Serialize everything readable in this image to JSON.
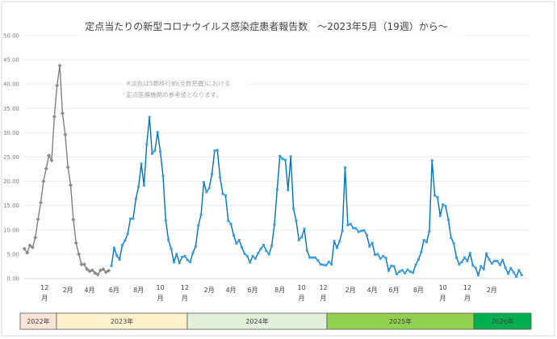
{
  "chart_data": {
    "type": "line",
    "title": "定点当たりの新型コロナウイルス感染症患者報告数　～2023年5月（19週）から～",
    "note_lines": [
      "※淡色は5類移行前(全数把握)における",
      "定点医療機関の参考値となります。"
    ],
    "ylim": [
      0,
      50
    ],
    "y_ticks": [
      "0.00",
      "5.00",
      "10.00",
      "15.00",
      "20.00",
      "25.00",
      "30.00",
      "35.00",
      "40.00",
      "45.00",
      "50.00"
    ],
    "grid": true,
    "x_ticks": [
      "12月",
      "2月",
      "4月",
      "6月",
      "8月",
      "10月",
      "12月",
      "2月",
      "4月",
      "6月",
      "8月",
      "10月",
      "12月",
      "2月",
      "4月",
      "6月",
      "8月",
      "10月",
      "12月",
      "2月"
    ],
    "series": [
      {
        "color": "#808080",
        "values": [
          6.1,
          5.3,
          6.8,
          6.4,
          8.4,
          12.2,
          15.6,
          20.0,
          22.6,
          25.3,
          24.3,
          33.3,
          39.7,
          43.8,
          34.0,
          29.6,
          22.9,
          19.2,
          12.1,
          7.3,
          5.0,
          2.9,
          2.9,
          1.9,
          1.5,
          1.7,
          1.1,
          0.8,
          1.7,
          1.9,
          1.3,
          1.6
        ]
      },
      {
        "color": "#0070c0",
        "values": [
          2.6,
          6.3,
          4.7,
          3.9,
          6.9,
          7.8,
          9.2,
          12.3,
          12.3,
          16.4,
          18.9,
          23.6,
          19.1,
          27.6,
          33.2,
          25.7,
          26.3,
          30.1,
          26.1,
          21.1,
          11.9,
          7.9,
          6.1,
          3.4,
          5.0,
          3.2,
          4.4,
          4.6,
          3.8,
          3.4,
          5.3,
          6.6,
          10.9,
          13.1,
          19.8,
          17.8,
          18.6,
          21.5,
          26.3,
          26.4,
          20.8,
          17.4,
          17.1,
          11.9,
          11.2,
          8.9,
          7.2,
          7.9,
          6.4,
          5.1,
          4.6,
          3.3,
          4.6,
          4.1,
          5.2,
          6.1,
          6.9,
          5.7,
          5.0,
          6.7,
          11.1,
          18.3,
          25.2,
          24.6,
          24.4,
          18.2,
          25.1,
          14.4,
          11.9,
          7.9,
          8.5,
          10.2,
          5.7,
          4.3,
          4.3,
          4.3,
          3.7,
          2.9,
          2.8,
          2.7,
          3.4,
          2.9,
          7.7,
          6.3,
          7.7,
          9.8,
          22.8,
          11.0,
          11.2,
          10.4,
          10.3,
          9.6,
          9.8,
          9.9,
          8.9,
          6.6,
          7.3,
          4.9,
          5.0,
          4.1,
          4.6,
          4.2,
          1.6,
          2.6,
          2.5,
          0.9,
          1.4,
          1.7,
          1.1,
          1.8,
          1.4,
          1.2,
          2.8,
          3.9,
          5.4,
          7.9,
          7.5,
          9.7,
          24.3,
          17.1,
          16.7,
          12.9,
          15.2,
          14.9,
          12.1,
          8.4,
          7.2,
          4.3,
          2.9,
          3.4,
          4.3,
          3.6,
          5.2,
          2.7,
          2.2,
          0.7,
          2.5,
          1.9,
          5.1,
          3.9,
          3.1,
          3.6,
          3.6,
          2.8,
          3.8,
          2.2,
          1.0,
          2.1,
          1.3,
          0.4,
          1.7,
          0.7
        ]
      }
    ],
    "year_bands": [
      {
        "label": "2022年",
        "color": "#fce4d6"
      },
      {
        "label": "2023年",
        "color": "#fff2cc"
      },
      {
        "label": "2024年",
        "color": "#e2efda"
      },
      {
        "label": "2025年",
        "color": "#92d050"
      },
      {
        "label": "2026年",
        "color": "#00b050"
      }
    ]
  }
}
